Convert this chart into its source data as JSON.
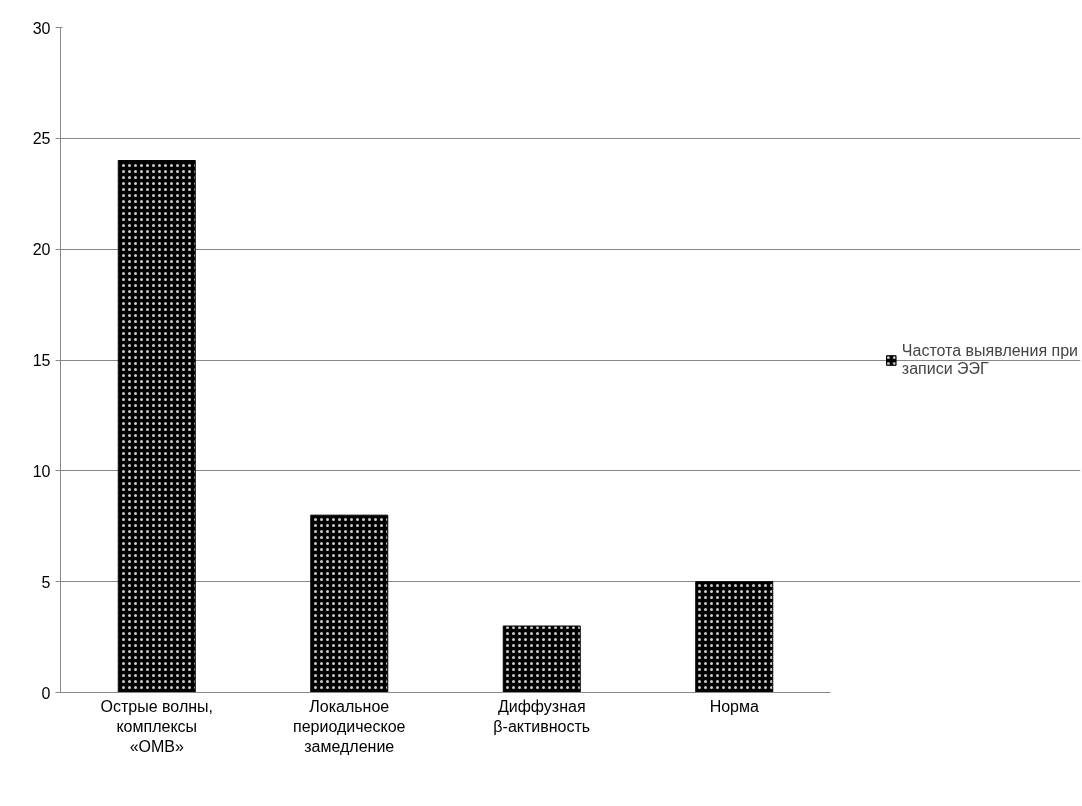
{
  "chart_data": {
    "type": "bar",
    "categories": [
      "Острые волны, комплексы «ОМВ»",
      "Локальное периодическое замедление",
      "Диффузная β-активность",
      "Норма"
    ],
    "series": [
      {
        "name": "Частота выявления при записи ЭЭГ",
        "color": "#000000",
        "values": [
          24,
          8,
          3,
          5
        ]
      }
    ],
    "ylim": [
      0,
      30
    ],
    "yticks": [
      0,
      5,
      10,
      15,
      20,
      25,
      30
    ],
    "grid": "y",
    "legend": "right"
  }
}
